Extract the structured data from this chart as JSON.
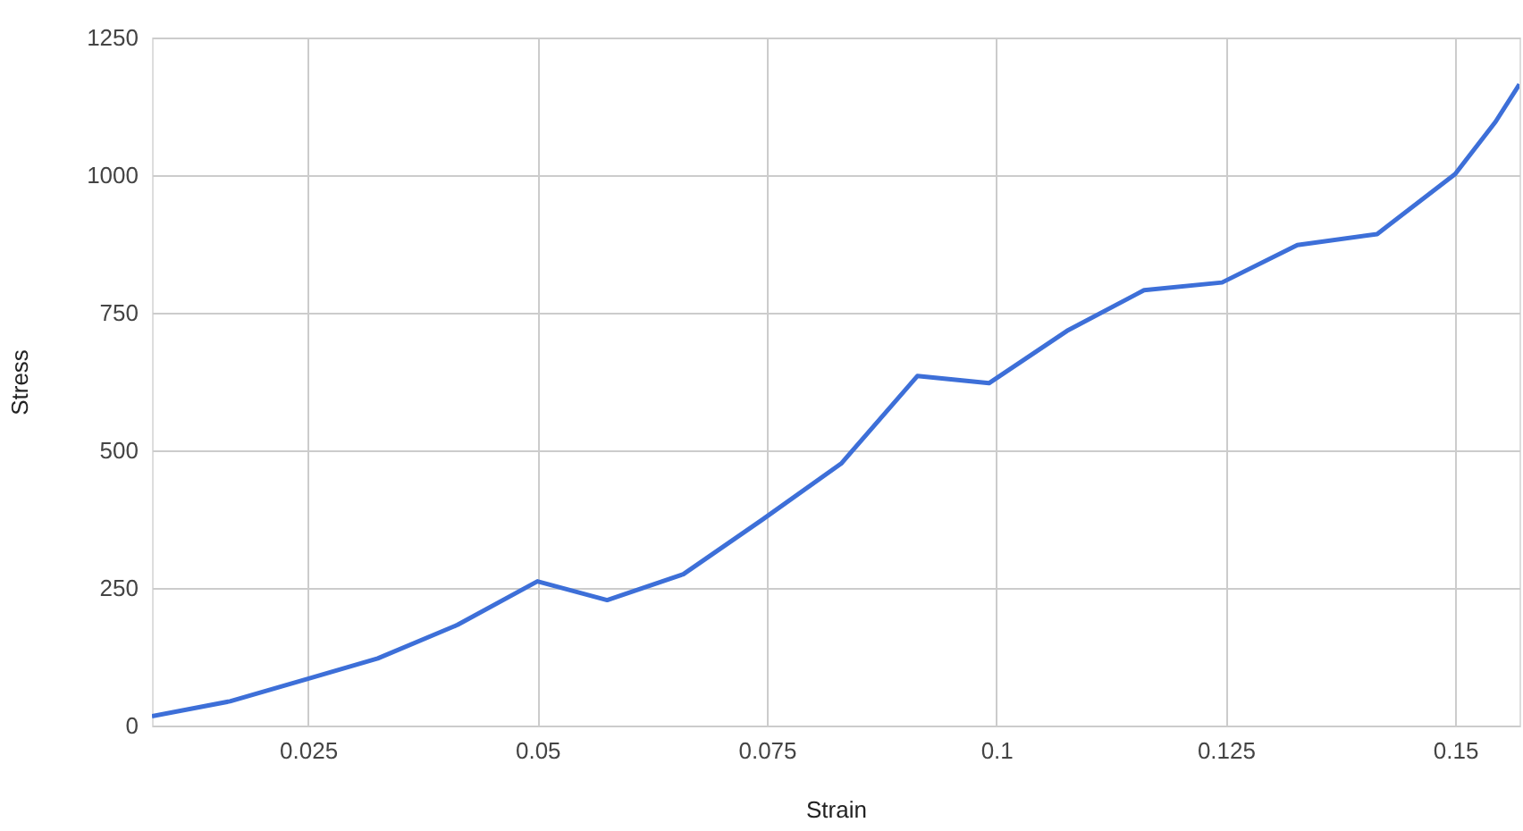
{
  "chart_data": {
    "type": "line",
    "xlabel": "Strain",
    "ylabel": "Stress",
    "x": [
      0.008,
      0.0165,
      0.025,
      0.0326,
      0.0413,
      0.05,
      0.0576,
      0.0659,
      0.0745,
      0.0831,
      0.0914,
      0.0992,
      0.1077,
      0.1161,
      0.1246,
      0.1328,
      0.1415,
      0.15,
      0.1544,
      0.157
    ],
    "series": [
      {
        "color": "#3d6fd8",
        "values": [
          17,
          44,
          85,
          122,
          183,
          262,
          228,
          275,
          374,
          476,
          635,
          622,
          717,
          791,
          805,
          873,
          893,
          1002,
          1097,
          1165
        ]
      }
    ],
    "xlim": [
      0.008,
      0.157
    ],
    "ylim": [
      0,
      1250
    ],
    "xticks": [
      0.025,
      0.05,
      0.075,
      0.1,
      0.125,
      0.15
    ],
    "yticks": [
      0,
      250,
      500,
      750,
      1000,
      1250
    ],
    "grid": true,
    "marker": "none",
    "line_style": "solid"
  }
}
